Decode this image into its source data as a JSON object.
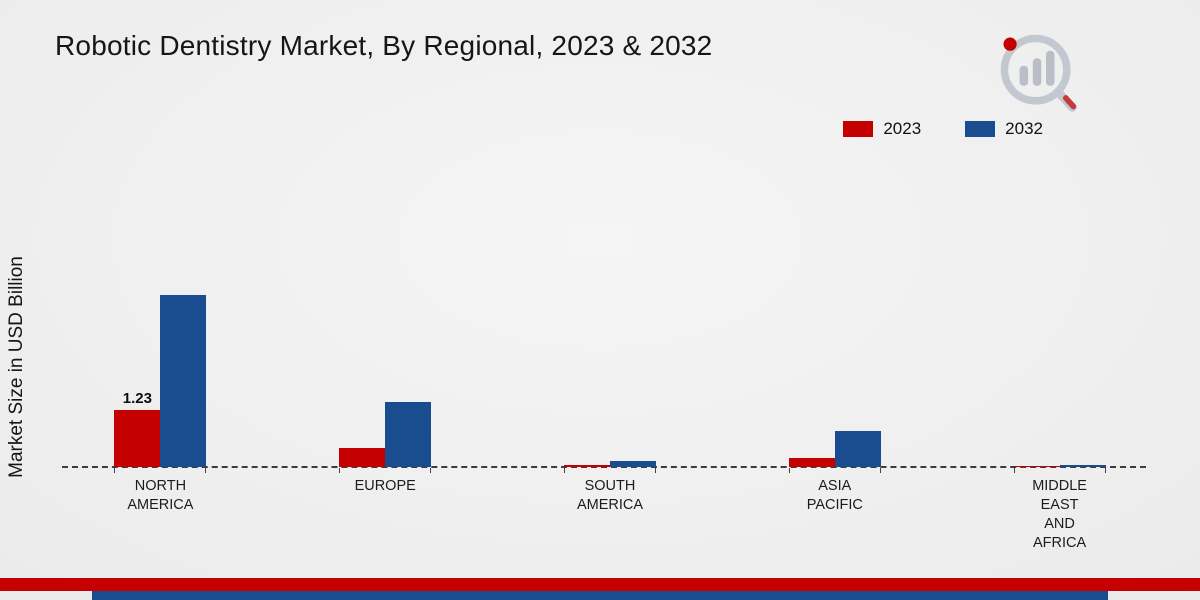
{
  "chart_data": {
    "type": "bar",
    "title": "Robotic Dentistry Market, By Regional, 2023 & 2032",
    "ylabel": "Market Size in USD Billion",
    "xlabel": "",
    "categories": [
      "NORTH AMERICA",
      "EUROPE",
      "SOUTH AMERICA",
      "ASIA PACIFIC",
      "MIDDLE EAST AND AFRICA"
    ],
    "category_label_lines": [
      [
        "NORTH",
        "AMERICA"
      ],
      [
        "EUROPE"
      ],
      [
        "SOUTH",
        "AMERICA"
      ],
      [
        "ASIA",
        "PACIFIC"
      ],
      [
        "MIDDLE",
        "EAST",
        "AND",
        "AFRICA"
      ]
    ],
    "series": [
      {
        "name": "2023",
        "color": "#c40000",
        "values": [
          1.23,
          0.42,
          0.05,
          0.2,
          0.03
        ],
        "data_labels": [
          "1.23",
          null,
          null,
          null,
          null
        ]
      },
      {
        "name": "2032",
        "color": "#1a4d8f",
        "values": [
          3.7,
          1.4,
          0.12,
          0.77,
          0.05
        ],
        "data_labels": [
          null,
          null,
          null,
          null,
          null
        ]
      }
    ],
    "ylim": [
      0,
      4.2
    ],
    "grid": false,
    "baseline_style": "dashed",
    "legend_position": "top-right"
  },
  "branding": {
    "logo_name": "market-research-future-logo",
    "accent_red": "#c40000",
    "accent_blue": "#1a4d8f",
    "logo_gray": "#c3c8d0"
  }
}
